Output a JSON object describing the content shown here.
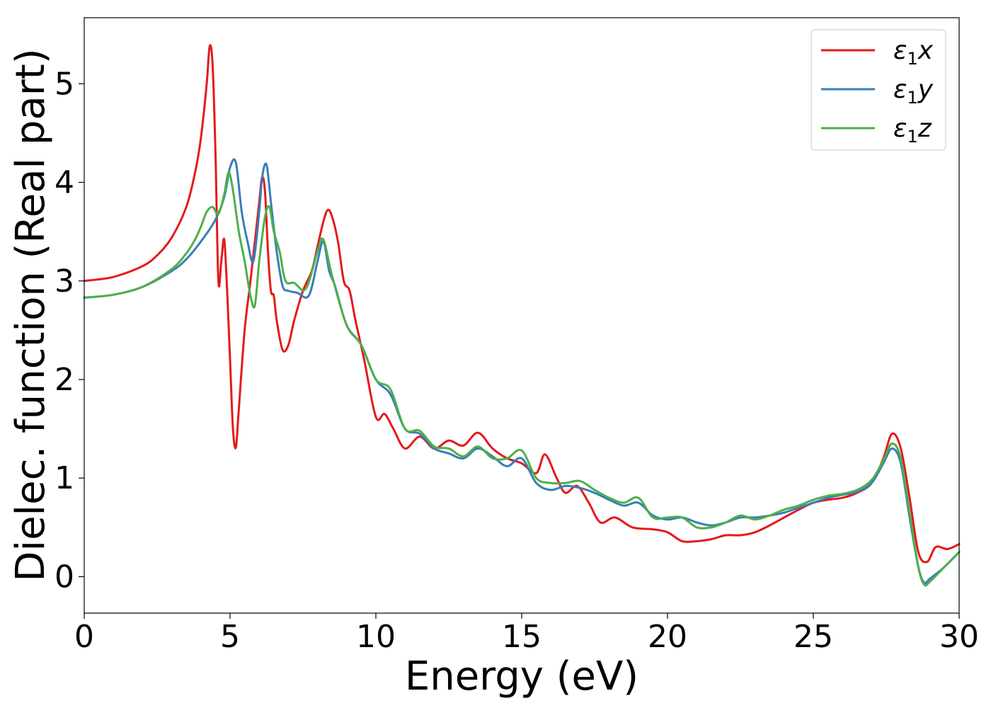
{
  "chart_data": {
    "type": "line",
    "xlabel": "Energy (eV)",
    "ylabel": "Dielec. function (Real part)",
    "xlim": [
      0,
      30
    ],
    "ylim": [
      -0.37,
      5.67
    ],
    "xticks": [
      0,
      5,
      10,
      15,
      20,
      25,
      30
    ],
    "yticks": [
      0,
      1,
      2,
      3,
      4,
      5
    ],
    "grid": false,
    "legend_position": "top-right",
    "series": [
      {
        "name": "ε1x",
        "legend_main": "ε",
        "legend_sub": "1",
        "legend_var": "x",
        "color": "#e41a1c",
        "x": [
          0,
          1,
          2,
          2.5,
          3,
          3.5,
          3.8,
          4.0,
          4.2,
          4.3,
          4.4,
          4.5,
          4.6,
          4.7,
          4.8,
          4.9,
          5.0,
          5.1,
          5.2,
          5.3,
          5.5,
          5.7,
          6.0,
          6.1,
          6.2,
          6.3,
          6.4,
          6.5,
          6.6,
          6.8,
          7.0,
          7.2,
          7.5,
          7.8,
          8.0,
          8.2,
          8.35,
          8.5,
          8.7,
          8.9,
          9.1,
          9.3,
          9.6,
          10.0,
          10.3,
          10.6,
          11.0,
          11.5,
          12.0,
          12.5,
          13.0,
          13.5,
          14.0,
          14.5,
          15.0,
          15.5,
          15.8,
          16.2,
          16.5,
          16.9,
          17.3,
          17.7,
          18.2,
          18.8,
          19.5,
          20.0,
          20.5,
          21.0,
          21.5,
          22.0,
          22.5,
          23.0,
          23.5,
          24.0,
          24.5,
          25.0,
          25.5,
          26.0,
          26.5,
          27.0,
          27.4,
          27.7,
          28.0,
          28.3,
          28.6,
          28.9,
          29.2,
          29.6,
          30.0
        ],
        "y": [
          3.0,
          3.04,
          3.15,
          3.26,
          3.44,
          3.75,
          4.1,
          4.45,
          5.0,
          5.38,
          5.2,
          4.3,
          3.0,
          3.2,
          3.42,
          2.9,
          2.2,
          1.5,
          1.31,
          1.7,
          2.5,
          3.0,
          3.8,
          4.05,
          3.9,
          3.3,
          2.9,
          2.85,
          2.6,
          2.3,
          2.35,
          2.6,
          2.9,
          3.1,
          3.35,
          3.6,
          3.72,
          3.65,
          3.4,
          3.0,
          2.9,
          2.6,
          2.2,
          1.62,
          1.65,
          1.5,
          1.3,
          1.42,
          1.3,
          1.38,
          1.33,
          1.46,
          1.3,
          1.2,
          1.15,
          1.05,
          1.24,
          1.0,
          0.85,
          0.92,
          0.75,
          0.55,
          0.6,
          0.5,
          0.48,
          0.45,
          0.36,
          0.36,
          0.38,
          0.42,
          0.42,
          0.45,
          0.52,
          0.6,
          0.68,
          0.75,
          0.78,
          0.8,
          0.85,
          0.95,
          1.2,
          1.45,
          1.3,
          0.8,
          0.25,
          0.15,
          0.3,
          0.28,
          0.33
        ]
      },
      {
        "name": "ε1y",
        "legend_main": "ε",
        "legend_sub": "1",
        "legend_var": "y",
        "color": "#377eb8",
        "x": [
          0,
          1,
          2,
          3,
          3.5,
          4.0,
          4.5,
          4.8,
          5.0,
          5.2,
          5.4,
          5.6,
          5.8,
          6.0,
          6.1,
          6.25,
          6.4,
          6.6,
          6.8,
          7.0,
          7.3,
          7.7,
          8.0,
          8.2,
          8.4,
          8.6,
          9.0,
          9.5,
          10.0,
          10.5,
          11.0,
          11.5,
          12.0,
          12.5,
          13.0,
          13.5,
          14.0,
          14.5,
          15.0,
          15.5,
          16.0,
          16.5,
          17.0,
          17.5,
          18.0,
          18.5,
          19.0,
          19.5,
          20.0,
          20.5,
          21.0,
          21.5,
          22.0,
          22.5,
          23.0,
          23.5,
          24.0,
          24.5,
          25.0,
          25.5,
          26.0,
          26.5,
          27.0,
          27.4,
          27.7,
          28.0,
          28.3,
          28.6,
          28.8,
          29.0,
          29.5,
          30.0
        ],
        "y": [
          2.83,
          2.86,
          2.94,
          3.1,
          3.22,
          3.4,
          3.62,
          3.85,
          4.15,
          4.2,
          3.7,
          3.4,
          3.2,
          3.7,
          4.05,
          4.18,
          3.8,
          3.3,
          2.95,
          2.9,
          2.88,
          2.85,
          3.2,
          3.4,
          3.1,
          2.95,
          2.55,
          2.35,
          2.0,
          1.85,
          1.5,
          1.45,
          1.3,
          1.25,
          1.2,
          1.3,
          1.22,
          1.12,
          1.2,
          0.95,
          0.88,
          0.92,
          0.9,
          0.85,
          0.78,
          0.72,
          0.75,
          0.62,
          0.58,
          0.6,
          0.55,
          0.52,
          0.55,
          0.6,
          0.6,
          0.62,
          0.65,
          0.7,
          0.75,
          0.8,
          0.83,
          0.86,
          0.95,
          1.15,
          1.3,
          1.15,
          0.6,
          0.1,
          -0.06,
          -0.02,
          0.1,
          0.25
        ]
      },
      {
        "name": "ε1z",
        "legend_main": "ε",
        "legend_sub": "1",
        "legend_var": "z",
        "color": "#4daf4a",
        "x": [
          0,
          1,
          2,
          3,
          3.5,
          3.8,
          4.0,
          4.2,
          4.4,
          4.6,
          4.8,
          4.95,
          5.1,
          5.3,
          5.5,
          5.7,
          5.85,
          6.0,
          6.2,
          6.35,
          6.5,
          6.7,
          6.9,
          7.2,
          7.6,
          8.0,
          8.2,
          8.5,
          9.0,
          9.5,
          10.0,
          10.5,
          11.0,
          11.5,
          12.0,
          12.5,
          13.0,
          13.5,
          14.0,
          14.5,
          15.0,
          15.5,
          16.0,
          16.5,
          17.0,
          17.5,
          18.0,
          18.5,
          19.0,
          19.5,
          20.0,
          20.5,
          21.0,
          21.5,
          22.0,
          22.5,
          23.0,
          23.5,
          24.0,
          24.5,
          25.0,
          25.5,
          26.0,
          26.5,
          27.0,
          27.4,
          27.7,
          28.0,
          28.3,
          28.6,
          28.8,
          29.0,
          29.5,
          30.0
        ],
        "y": [
          2.83,
          2.86,
          2.94,
          3.12,
          3.28,
          3.42,
          3.55,
          3.7,
          3.75,
          3.68,
          3.88,
          4.1,
          3.92,
          3.5,
          3.2,
          2.85,
          2.75,
          3.2,
          3.65,
          3.75,
          3.5,
          3.3,
          3.0,
          2.98,
          2.92,
          3.3,
          3.42,
          3.05,
          2.55,
          2.35,
          2.0,
          1.9,
          1.5,
          1.48,
          1.32,
          1.3,
          1.22,
          1.32,
          1.2,
          1.2,
          1.28,
          1.0,
          0.95,
          0.95,
          0.97,
          0.88,
          0.8,
          0.75,
          0.8,
          0.6,
          0.6,
          0.6,
          0.5,
          0.5,
          0.55,
          0.62,
          0.58,
          0.62,
          0.68,
          0.72,
          0.78,
          0.82,
          0.84,
          0.88,
          0.98,
          1.18,
          1.35,
          1.2,
          0.65,
          0.1,
          -0.08,
          -0.05,
          0.1,
          0.25
        ]
      }
    ]
  }
}
